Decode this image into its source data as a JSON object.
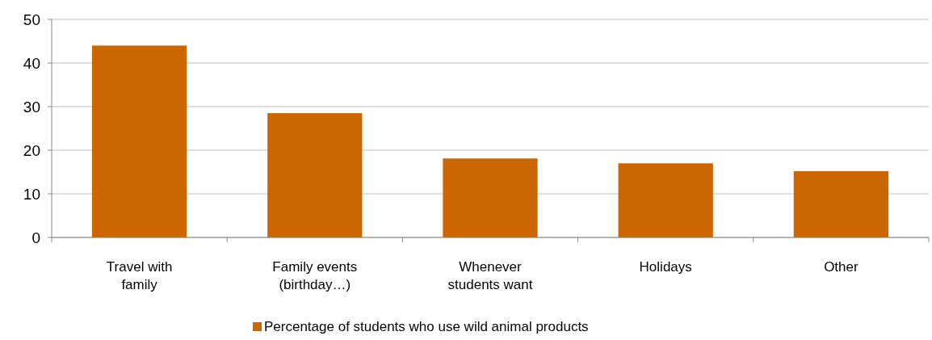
{
  "chart_data": {
    "type": "bar",
    "categories": [
      "Travel with family",
      "Family events (birthday…)",
      "Whenever students want",
      "Holidays",
      "Other"
    ],
    "series": [
      {
        "name": "Percentage of students who use wild animal products",
        "color": "#cc6600",
        "values": [
          44,
          28.5,
          18.1,
          17,
          15.2
        ]
      }
    ],
    "ylim": [
      0,
      50
    ],
    "yticks": [
      0,
      10,
      20,
      30,
      40,
      50
    ],
    "grid": "y",
    "legend": "bottom"
  }
}
